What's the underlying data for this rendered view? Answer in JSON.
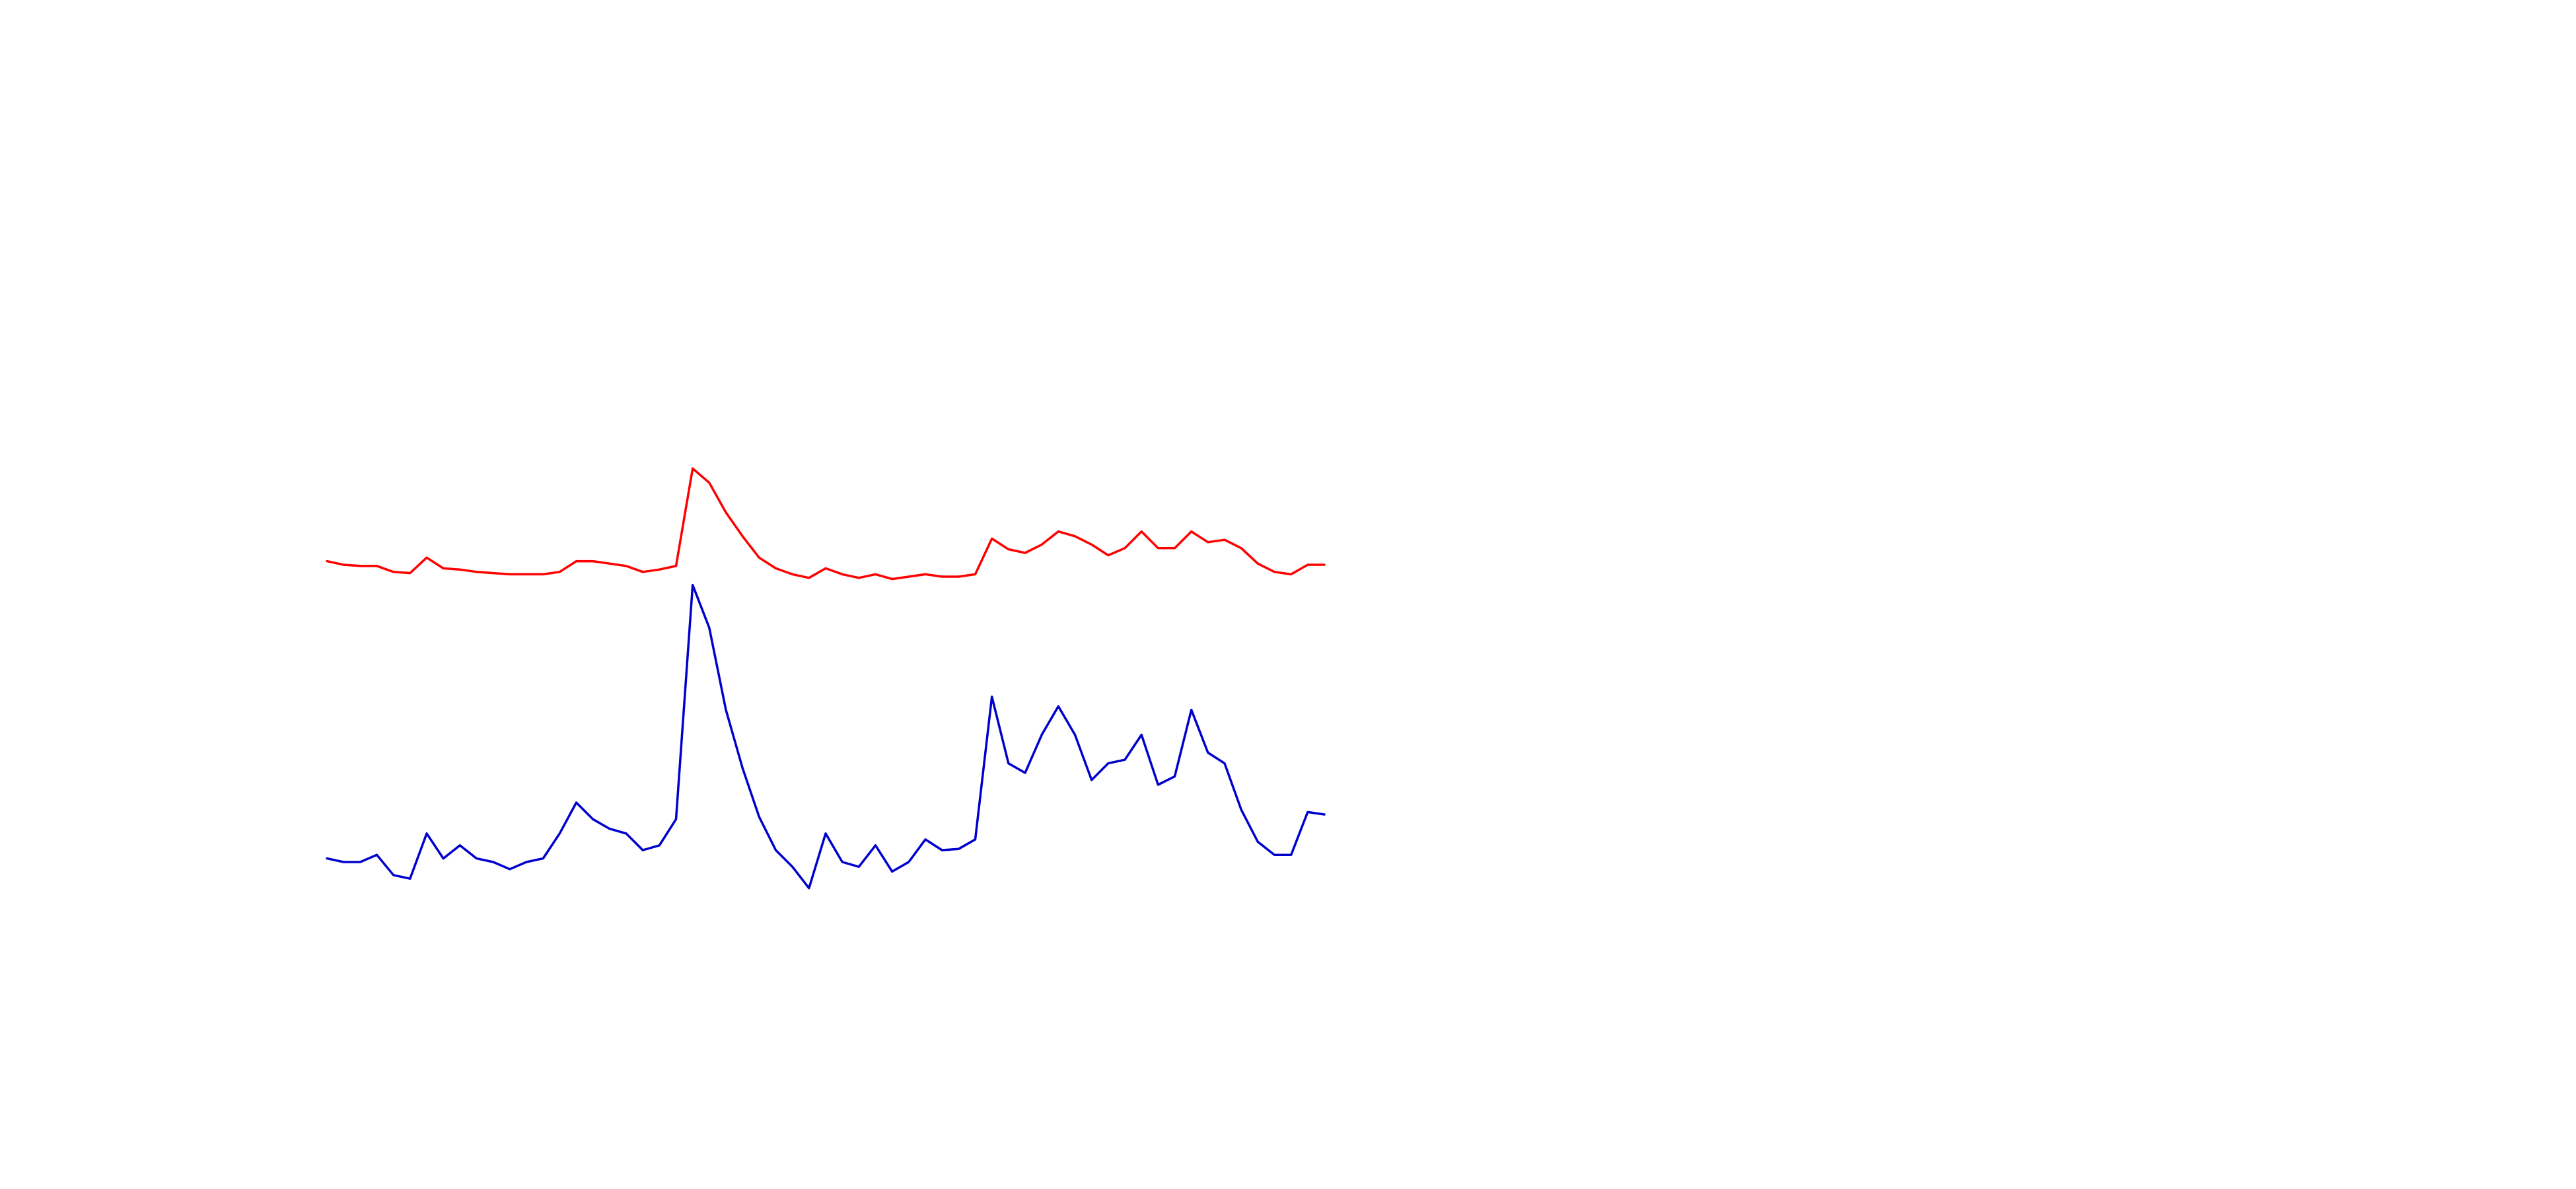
{
  "chart_data": {
    "type": "line",
    "x": [
      0,
      1,
      2,
      3,
      4,
      5,
      6,
      7,
      8,
      9,
      10,
      11,
      12,
      13,
      14,
      15,
      16,
      17,
      18,
      19,
      20,
      21,
      22,
      23,
      24,
      25,
      26,
      27,
      28,
      29,
      30,
      31,
      32,
      33,
      34,
      35,
      36,
      37,
      38,
      39,
      40,
      41,
      42,
      43,
      44,
      45,
      46,
      47,
      48,
      49,
      50,
      51,
      52,
      53,
      54,
      55,
      56,
      57,
      58,
      59,
      60
    ],
    "xlim": [
      0,
      60
    ],
    "ylim": [
      0,
      100
    ],
    "series": [
      {
        "color": "#ff0000",
        "values": [
          52.8,
          52.5,
          52.4,
          52.4,
          51.9,
          51.8,
          53.1,
          52.2,
          52.1,
          51.9,
          51.8,
          51.7,
          51.7,
          51.7,
          51.9,
          52.8,
          52.8,
          52.6,
          52.4,
          51.9,
          52.1,
          52.4,
          60.6,
          59.4,
          56.9,
          54.9,
          53.1,
          52.2,
          51.7,
          51.4,
          52.2,
          51.7,
          51.4,
          51.7,
          51.3,
          51.5,
          51.7,
          51.5,
          51.5,
          51.7,
          54.7,
          53.8,
          53.5,
          54.2,
          55.3,
          54.9,
          54.2,
          53.3,
          53.9,
          55.3,
          53.9,
          53.9,
          55.3,
          54.4,
          54.6,
          53.9,
          52.6,
          51.9,
          51.7,
          52.5,
          52.5
        ]
      },
      {
        "color": "#0000cc",
        "values": [
          27.8,
          27.5,
          27.5,
          28.1,
          26.4,
          26.1,
          29.9,
          27.8,
          28.9,
          27.8,
          27.5,
          26.9,
          27.5,
          27.8,
          29.9,
          32.5,
          31.1,
          30.3,
          29.9,
          28.5,
          28.9,
          31.1,
          50.8,
          47.2,
          40.3,
          35.4,
          31.3,
          28.5,
          27.1,
          25.3,
          29.9,
          27.5,
          27.1,
          28.9,
          26.7,
          27.5,
          29.4,
          28.5,
          28.6,
          29.4,
          41.4,
          35.8,
          35.0,
          38.2,
          40.6,
          38.2,
          34.4,
          35.8,
          36.1,
          38.2,
          34.0,
          34.7,
          40.3,
          36.7,
          35.8,
          31.9,
          29.2,
          28.1,
          28.1,
          31.7,
          31.5
        ]
      }
    ]
  }
}
